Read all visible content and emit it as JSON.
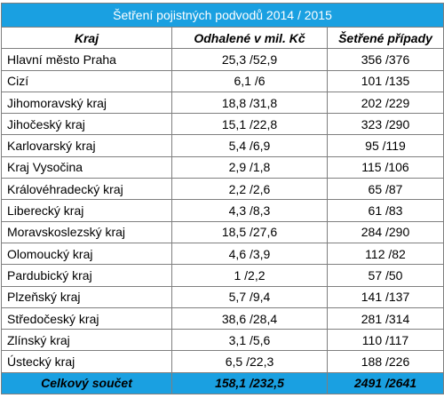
{
  "title": "Šetření pojistných podvodů 2014 / 2015",
  "headers": {
    "region": "Kraj",
    "detected": "Odhalené v mil. Kč",
    "cases": "Šetřené případy"
  },
  "rows": [
    {
      "region": "Hlavní město Praha",
      "detected": "25,3 /52,9",
      "cases": "356 /376"
    },
    {
      "region": "Cizí",
      "detected": "6,1 /6",
      "cases": "101 /135"
    },
    {
      "region": "Jihomoravský kraj",
      "detected": "18,8 /31,8",
      "cases": "202 /229"
    },
    {
      "region": "Jihočeský kraj",
      "detected": "15,1 /22,8",
      "cases": "323 /290"
    },
    {
      "region": "Karlovarský kraj",
      "detected": "5,4 /6,9",
      "cases": "95 /119"
    },
    {
      "region": "Kraj Vysočina",
      "detected": "2,9 /1,8",
      "cases": "115 /106"
    },
    {
      "region": "Královéhradecký kraj",
      "detected": "2,2 /2,6",
      "cases": "65 /87"
    },
    {
      "region": "Liberecký kraj",
      "detected": "4,3 /8,3",
      "cases": "61 /83"
    },
    {
      "region": "Moravskoslezský kraj",
      "detected": "18,5 /27,6",
      "cases": "284 /290"
    },
    {
      "region": "Olomoucký kraj",
      "detected": "4,6 /3,9",
      "cases": "112 /82"
    },
    {
      "region": "Pardubický kraj",
      "detected": "1 /2,2",
      "cases": "57 /50"
    },
    {
      "region": "Plzeňský kraj",
      "detected": "5,7 /9,4",
      "cases": "141 /137"
    },
    {
      "region": "Středočeský kraj",
      "detected": "38,6 /28,4",
      "cases": "281 /314"
    },
    {
      "region": "Zlínský kraj",
      "detected": "3,1 /5,6",
      "cases": "110 /117"
    },
    {
      "region": "Ústecký kraj",
      "detected": "6,5 /22,3",
      "cases": "188 /226"
    }
  ],
  "total": {
    "label": "Celkový součet",
    "detected": "158,1 /232,5",
    "cases": "2491 /2641"
  },
  "colors": {
    "header_fill": "#1aa0e1",
    "border": "#7f7f7f"
  }
}
